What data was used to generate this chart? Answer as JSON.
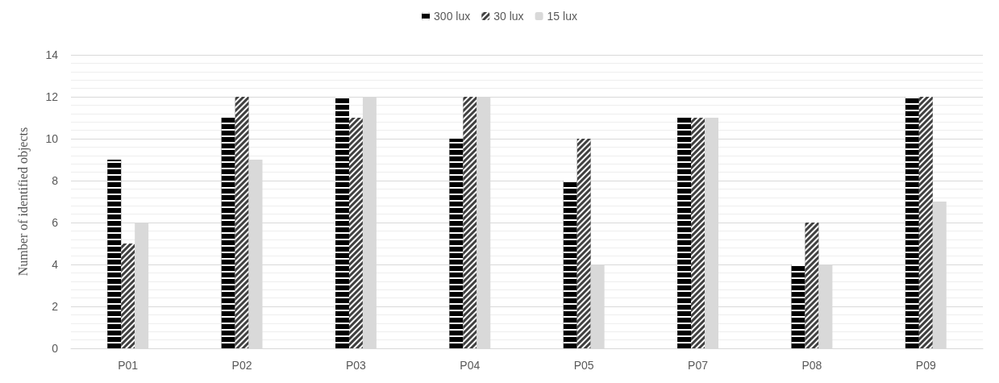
{
  "chart_data": {
    "type": "bar",
    "ylabel": "Number of identified objects",
    "categories": [
      "P01",
      "P02",
      "P03",
      "P04",
      "P05",
      "P07",
      "P08",
      "P09"
    ],
    "series": [
      {
        "name": "300 lux",
        "color": "#000000",
        "values": [
          9,
          11,
          12,
          10,
          8,
          11,
          4,
          12
        ]
      },
      {
        "name": "30 lux",
        "color": "#404040",
        "values": [
          5,
          12,
          11,
          12,
          10,
          11,
          6,
          12
        ]
      },
      {
        "name": "15 lux",
        "color": "#d9d9d9",
        "values": [
          6,
          9,
          12,
          12,
          4,
          11,
          4,
          7
        ]
      }
    ],
    "ylim": [
      0,
      14
    ],
    "yticks": [
      0,
      2,
      4,
      6,
      8,
      10,
      12,
      14
    ],
    "grid": "y",
    "legend": "top"
  }
}
